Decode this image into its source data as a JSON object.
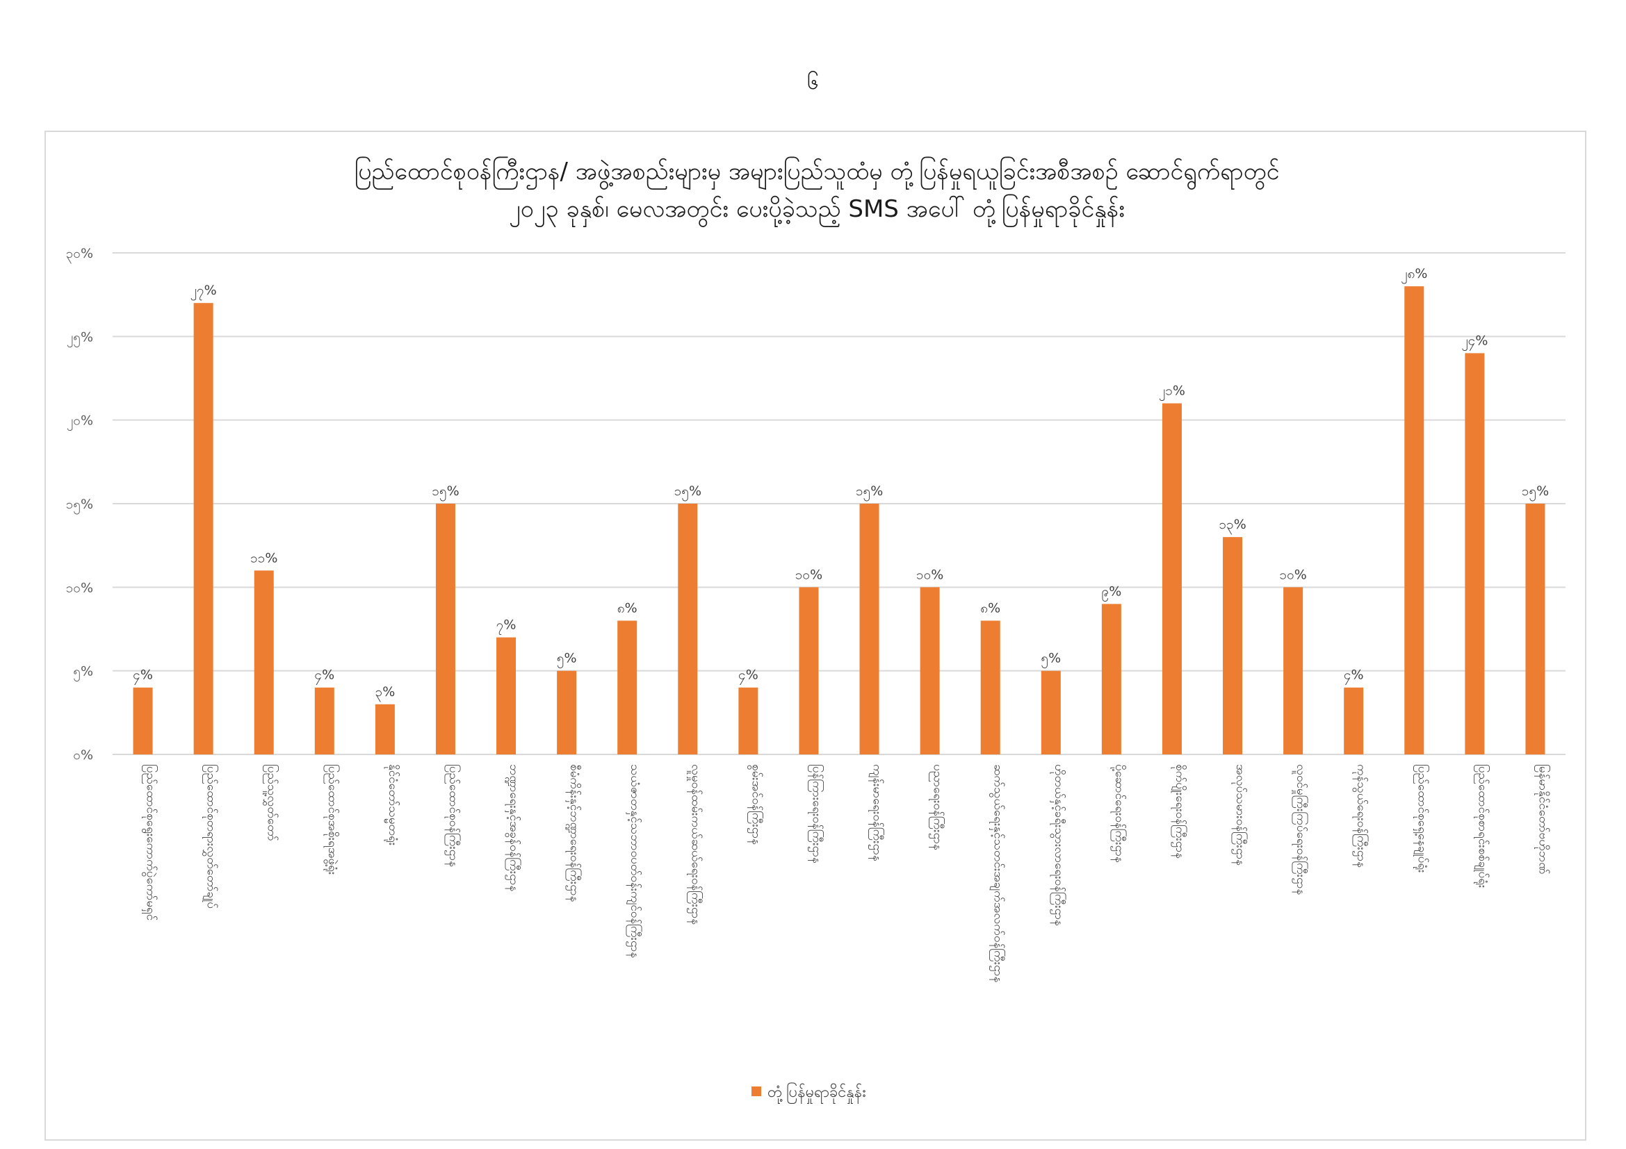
{
  "page": {
    "number": "၆"
  },
  "chart_data": {
    "type": "bar",
    "title": [
      "ပြည်ထောင်စုဝန်ကြီးဌာန/ အဖွဲ့အစည်းများမှ အများပြည်သူထံမှ တုံ့ပြန်မှုရယူခြင်းအစီအစဉ် ဆောင်ရွက်ရာတွင်",
      "၂၀၂၃ ခုနှစ်၊ မေလအတွင်း ပေးပို့ခဲ့သည့် SMS အပေါ် တုံ့ပြန်မှုရာခိုင်နှုန်း"
    ],
    "xlabel": "",
    "ylabel": "",
    "ylim": [
      0,
      30
    ],
    "yticks": [
      0,
      5,
      10,
      15,
      20,
      25,
      30
    ],
    "ytick_labels": [
      "၀%",
      "၅%",
      "၁၀%",
      "၁၅%",
      "၂၀%",
      "၂၅%",
      "၃၀%"
    ],
    "grid": true,
    "legend_position": "bottom",
    "bar_color": "#ED7D31",
    "grid_color": "#d9d9d9",
    "series": [
      {
        "name": "တုံ့ပြန်မှုရာခိုင်နှုန်း",
        "values": [
          4,
          27,
          11,
          4,
          3,
          15,
          7,
          5,
          8,
          15,
          4,
          10,
          15,
          10,
          8,
          5,
          9,
          21,
          13,
          10,
          4,
          28,
          24,
          15
        ],
        "data_labels": [
          "၄%",
          "၂၇%",
          "၁၁%",
          "၄%",
          "၃%",
          "၁၅%",
          "၇%",
          "၅%",
          "၈%",
          "၁၅%",
          "၄%",
          "၁၀%",
          "၁၅%",
          "၁၀%",
          "၈%",
          "၅%",
          "၉%",
          "၂၁%",
          "၁၃%",
          "၁၀%",
          "၄%",
          "၂၈%",
          "၂၄%",
          "၁၅%"
        ]
      }
    ],
    "categories": [
      "ပြည်ထောင်စုရွေးကောက်ပွဲကော်မရှင်",
      "ပြည်ထောင်စုတရားလွှတ်တော်ချုပ်",
      "ပြည်သူ့လွှတ်တော်",
      "ပြည်ထောင်စုအစိုးရအဖွဲ့ရုံး",
      "နိုင်ငံတော်သမ္မတရုံး",
      "ပြည်ထောင်စုဝန်ကြီးဌာန",
      "ဘဏ္ဍာရေးနှင့်အခွန်ဝန်ကြီးဌာန",
      "စီမံကိန်းနှင့်ဘဏ္ဍာရေးဝန်ကြီးဌာန",
      "သယံဇာတနှင့်သဘာဝပတ်ဝန်းကျင်ဝန်ကြီးဌာန",
      "လူမှုဝန်ထမ်းကယ်ဆယ်ရေးဝန်ကြီးဌာန",
      "စွမ်းအင်ဝန်ကြီးဌာန",
      "ပြန်ကြားရေးဝန်ကြီးဌာန",
      "ကျန်းမာရေးဝန်ကြီးဌာန",
      "ပညာရေးဝန်ကြီးဌာန",
      "ဆက်သွယ်ရေးနှင့်သတင်းအချက်အလက်ဝန်ကြီးဌာန",
      "ဟိုတယ်နှင့်ခရီးသွားလာရေးဝန်ကြီးဌာန",
      "ပို့ဆောင်ရေးဝန်ကြီးဌာန",
      "စိုက်ပျိုးရေးဝန်ကြီးဌာန",
      "အလုပ်သမားဝန်ကြီးဌာန",
      "လူဝင်မှုကြီးကြပ်ရေးဝန်ကြီးဌာန",
      "ကုန်သွယ်ရေးဝန်ကြီးဌာန",
      "ပြည်ထောင်စုရှေ့နေချုပ်ရုံး",
      "ပြည်ထောင်စုစာရင်းစစ်ချုပ်ရုံး",
      "မြန်မာနိုင်ငံတော်ဗဟိုဘဏ်"
    ]
  }
}
